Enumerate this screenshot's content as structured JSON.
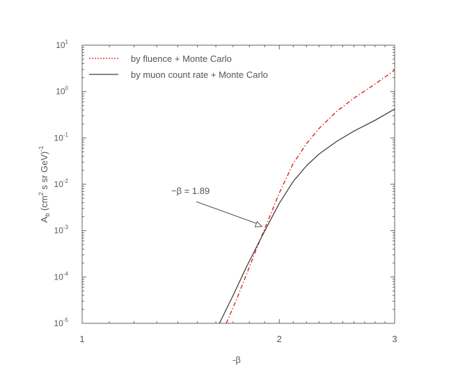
{
  "chart_data": {
    "type": "line",
    "title": "",
    "xlabel": "-β",
    "ylabel_parts": {
      "a": "A",
      "b": "b",
      "paren_open": " (cm",
      "sq": "2",
      "units": " s sr GeV)",
      "neg1": "-1"
    },
    "x_scale": "log",
    "y_scale": "log",
    "xlim": [
      1,
      3
    ],
    "ylim": [
      1e-05,
      10
    ],
    "grid": false,
    "legend_position": "top-left",
    "x_ticks": [
      {
        "value": 1,
        "label": "1"
      },
      {
        "value": 2,
        "label": "2"
      },
      {
        "value": 3,
        "label": "3"
      }
    ],
    "y_ticks": [
      {
        "value": 1e-05,
        "mant": "10",
        "exp": "-5"
      },
      {
        "value": 0.0001,
        "mant": "10",
        "exp": "-4"
      },
      {
        "value": 0.001,
        "mant": "10",
        "exp": "-3"
      },
      {
        "value": 0.01,
        "mant": "10",
        "exp": "-2"
      },
      {
        "value": 0.1,
        "mant": "10",
        "exp": "-1"
      },
      {
        "value": 1,
        "mant": "10",
        "exp": "0"
      },
      {
        "value": 10,
        "mant": "10",
        "exp": "1"
      }
    ],
    "series": [
      {
        "name": "by fluence + Monte Carlo",
        "color": "#e01010",
        "style": "dash-dot",
        "x": [
          1.66,
          1.72,
          1.78,
          1.84,
          1.9,
          1.96,
          2.0,
          2.1,
          2.2,
          2.3,
          2.45,
          2.6,
          2.8,
          3.0
        ],
        "y": [
          1e-05,
          3.2e-05,
          0.00011,
          0.00036,
          0.0011,
          0.0032,
          0.0065,
          0.028,
          0.075,
          0.16,
          0.38,
          0.72,
          1.45,
          2.9
        ]
      },
      {
        "name": "by muon count rate + Monte Carlo",
        "color": "#404040",
        "style": "solid",
        "x": [
          1.62,
          1.7,
          1.78,
          1.86,
          1.93,
          2.0,
          2.1,
          2.2,
          2.3,
          2.45,
          2.6,
          2.8,
          3.0
        ],
        "y": [
          1e-05,
          4e-05,
          0.00016,
          0.00055,
          0.0015,
          0.0039,
          0.0115,
          0.025,
          0.045,
          0.085,
          0.14,
          0.24,
          0.42
        ]
      }
    ],
    "annotation": {
      "text": "−β = 1.89",
      "x": 1.89,
      "y": 0.0012
    }
  }
}
